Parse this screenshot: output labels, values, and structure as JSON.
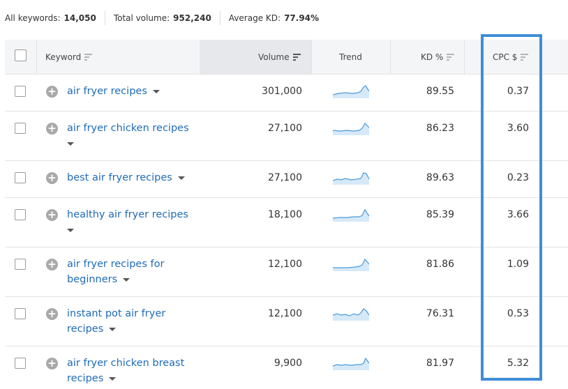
{
  "summary": {
    "all_keywords_label": "All keywords:",
    "all_keywords_value": "14,050",
    "total_volume_label": "Total volume:",
    "total_volume_value": "952,240",
    "average_kd_label": "Average KD:",
    "average_kd_value": "77.94%"
  },
  "columns": {
    "keyword": "Keyword",
    "volume": "Volume",
    "trend": "Trend",
    "kd": "KD %",
    "cpc": "CPC $"
  },
  "rows": [
    {
      "keyword_line1": "air fryer recipes",
      "keyword_line2": "",
      "volume": "301,000",
      "kd": "89.55",
      "cpc": "0.37"
    },
    {
      "keyword_line1": "air fryer chicken recipes",
      "keyword_line2": "",
      "volume": "27,100",
      "kd": "86.23",
      "cpc": "3.60"
    },
    {
      "keyword_line1": "best air fryer recipes",
      "keyword_line2": "",
      "volume": "27,100",
      "kd": "89.63",
      "cpc": "0.23"
    },
    {
      "keyword_line1": "healthy air fryer recipes",
      "keyword_line2": "",
      "volume": "18,100",
      "kd": "85.39",
      "cpc": "3.66"
    },
    {
      "keyword_line1": "air fryer recipes for",
      "keyword_line2": "beginners",
      "volume": "12,100",
      "kd": "81.86",
      "cpc": "1.09"
    },
    {
      "keyword_line1": "instant pot air fryer",
      "keyword_line2": "recipes",
      "volume": "12,100",
      "kd": "76.31",
      "cpc": "0.53"
    },
    {
      "keyword_line1": "air fryer chicken breast",
      "keyword_line2": "recipes",
      "volume": "9,900",
      "kd": "81.97",
      "cpc": "5.32"
    }
  ],
  "colors": {
    "link": "#1f6bb8",
    "highlight_border": "#3e8ed6",
    "trend_line": "#4a9ad8",
    "trend_fill": "#d6e9f8"
  }
}
